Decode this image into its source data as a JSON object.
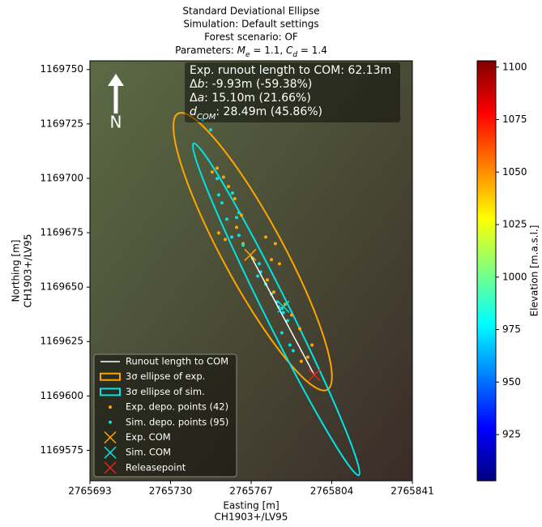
{
  "chart_data": {
    "type": "scatter",
    "title_lines": [
      "Standard Deviational Ellipse",
      "Simulation: Default settings",
      "Forest scenario: OF"
    ],
    "title_parameters": [
      "Parameters: ",
      "M",
      "e",
      " = 1.1, ",
      "C",
      "d",
      " = 1.4"
    ],
    "x_label": [
      "Easting [m]",
      "CH1903+/LV95"
    ],
    "y_label": [
      "Northing [m]",
      "CH1903+/LV95"
    ],
    "xlim": [
      2765693,
      2765841
    ],
    "xticks": [
      2765693,
      2765730,
      2765767,
      2765804,
      2765841
    ],
    "ylim": [
      1169561,
      1169754
    ],
    "yticks": [
      1169575,
      1169600,
      1169625,
      1169650,
      1169675,
      1169700,
      1169725,
      1169750
    ],
    "annotation": [
      [
        "Exp. runout length to COM: 62.13m"
      ],
      [
        "Δ",
        "b",
        ": -9.93m (-59.38%)"
      ],
      [
        "Δ",
        "a",
        ": 15.10m (21.66%)"
      ],
      [
        "d",
        "COM",
        ": 28.49m (45.86%)"
      ]
    ],
    "north_label": "N",
    "runout": {
      "name": "Runout length to COM",
      "color": "#ffffff"
    },
    "ellipses": [
      {
        "name": "3σ ellipse of exp.",
        "color": "#ffa500",
        "center": [
          2765767.7,
          1169666.3
        ],
        "semi_major": 72,
        "semi_minor": 14,
        "angle": 118.4
      },
      {
        "name": "3σ ellipse of sim.",
        "color": "#00e5e5",
        "center": [
          2765778.5,
          1169639.8
        ],
        "semi_major": 85,
        "semi_minor": 5.8,
        "angle": 116.5
      }
    ],
    "series": [
      {
        "name": "Exp. depo. points (42)",
        "color": "#ffa500",
        "x": [
          2765749.1,
          2765751.4,
          2765754.3,
          2765756.6,
          2765752.1,
          2765755.1,
          2765760.3,
          2765763.3,
          2765773.7,
          2765778.1,
          2765776.3,
          2765780.0,
          2765774.4,
          2765777.4,
          2765782.6,
          2765785.6,
          2765789.3,
          2765793.0,
          2765790.0,
          2765794.9,
          2765762.5,
          2765759.5
        ],
        "y": [
          1169702.9,
          1169704.7,
          1169700.6,
          1169696.2,
          1169674.9,
          1169671.9,
          1169677.5,
          1169670.0,
          1169673.0,
          1169670.0,
          1169662.6,
          1169660.7,
          1169653.3,
          1169647.7,
          1169642.1,
          1169637.2,
          1169630.9,
          1169617.8,
          1169615.9,
          1169623.4,
          1169683.1,
          1169690.6
        ]
      },
      {
        "name": "Sim. depo. points (95)",
        "color": "#00e5e5",
        "x": [
          2765751.4,
          2765752.1,
          2765753.6,
          2765758.4,
          2765761.4,
          2765758.1,
          2765761.4,
          2765763.3,
          2765767.7,
          2765771.4,
          2765773.7,
          2765776.3,
          2765778.9,
          2765781.1,
          2765783.7,
          2765781.1,
          2765784.8,
          2765786.3,
          2765781.8,
          2765779.6,
          2765770.7,
          2765770.0,
          2765760.3,
          2765755.8,
          2765744.7,
          2765748.4
        ],
        "y": [
          1169699.9,
          1169692.4,
          1169688.7,
          1169693.2,
          1169684.2,
          1169673.0,
          1169673.8,
          1169669.3,
          1169663.3,
          1169657.0,
          1169651.4,
          1169646.9,
          1169643.2,
          1169640.2,
          1169634.6,
          1169629.0,
          1169623.4,
          1169620.8,
          1169638.3,
          1169640.9,
          1169660.7,
          1169655.1,
          1169682.0,
          1169681.2,
          1169726.8,
          1169722.3
        ]
      }
    ],
    "markers": [
      {
        "name": "Exp. COM",
        "color": "#ffa500",
        "x": 2765766.6,
        "y": 1169664.8
      },
      {
        "name": "Sim. COM",
        "color": "#00e5e5",
        "x": 2765781.8,
        "y": 1169641.0
      },
      {
        "name": "Releasepoint",
        "color": "#e8211b",
        "x": 2765796.0,
        "y": 1169609.6
      }
    ],
    "colorbar": {
      "label": "Elevation [m.a.s.l.]",
      "lim": [
        903,
        1103
      ],
      "ticks": [
        925,
        950,
        975,
        1000,
        1025,
        1050,
        1075,
        1100
      ],
      "colors": [
        "#00007f",
        "#0000ff",
        "#007fff",
        "#00ffff",
        "#7fff7f",
        "#ffff00",
        "#ff7f00",
        "#ff0000",
        "#7f0000"
      ]
    }
  }
}
